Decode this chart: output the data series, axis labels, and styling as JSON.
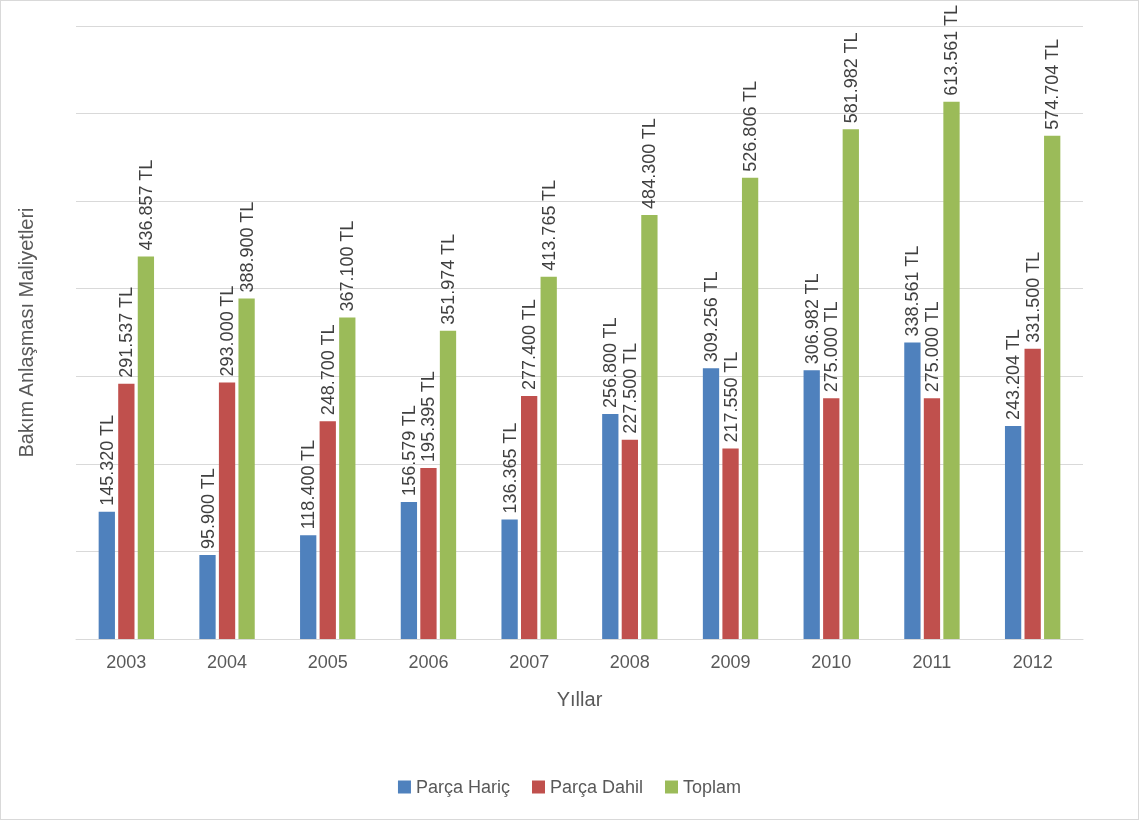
{
  "chart_data": {
    "type": "bar",
    "xlabel": "Yıllar",
    "ylabel": "Bakım Anlaşması Maliyetleri",
    "categories": [
      "2003",
      "2004",
      "2005",
      "2006",
      "2007",
      "2008",
      "2009",
      "2010",
      "2011",
      "2012"
    ],
    "series": [
      {
        "name": "Parça Hariç",
        "color": "#4f81bd",
        "values": [
          145320,
          95900,
          118400,
          156579,
          136365,
          256800,
          309256,
          306982,
          338561,
          243204
        ],
        "value_labels": [
          "145.320 TL",
          "95.900 TL",
          "118.400 TL",
          "156.579 TL",
          "136.365 TL",
          "256.800 TL",
          "309.256 TL",
          "306.982 TL",
          "338.561 TL",
          "243.204 TL"
        ]
      },
      {
        "name": "Parça Dahil",
        "color": "#c0504d",
        "values": [
          291537,
          293000,
          248700,
          195395,
          277400,
          227500,
          217550,
          275000,
          275000,
          331500
        ],
        "value_labels": [
          "291.537 TL",
          "293.000 TL",
          "248.700 TL",
          "195.395 TL",
          "277.400 TL",
          "227.500 TL",
          "217.550 TL",
          "275.000 TL",
          "275.000 TL",
          "331.500 TL"
        ]
      },
      {
        "name": "Toplam",
        "color": "#9bbb59",
        "values": [
          436857,
          388900,
          367100,
          351974,
          413765,
          484300,
          526806,
          581982,
          613561,
          574704
        ],
        "value_labels": [
          "436.857 TL",
          "388.900 TL",
          "367.100 TL",
          "351.974 TL",
          "413.765 TL",
          "484.300 TL",
          "526.806 TL",
          "581.982 TL",
          "613.561 TL",
          "574.704 TL"
        ]
      }
    ],
    "ylim": [
      0,
      700000
    ],
    "yticks": [
      {
        "value": 0,
        "label": null
      },
      {
        "value": 100000,
        "label": null
      },
      {
        "value": 200000,
        "label": null
      },
      {
        "value": 300000,
        "label": null
      },
      {
        "value": 400000,
        "label": null
      },
      {
        "value": 500000,
        "label": null
      },
      {
        "value": 600000,
        "label": null
      },
      {
        "value": 700000,
        "label": null
      }
    ],
    "tick_labels": "x",
    "grid": "y",
    "legend": "bottom"
  }
}
